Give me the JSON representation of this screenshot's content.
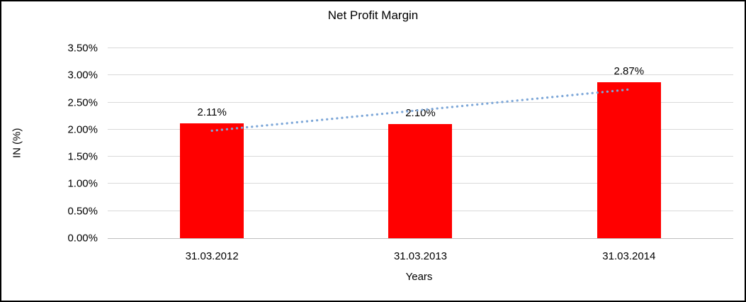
{
  "chart_data": {
    "type": "bar",
    "title": "Net Profit Margin",
    "xlabel": "Years",
    "ylabel": "IN (%)",
    "categories": [
      "31.03.2012",
      "31.03.2013",
      "31.03.2014"
    ],
    "values": [
      2.11,
      2.1,
      2.87
    ],
    "value_labels": [
      "2.11%",
      "2.10%",
      "2.87%"
    ],
    "ylim": [
      0,
      3.5
    ],
    "yticks": [
      0,
      0.5,
      1,
      1.5,
      2,
      2.5,
      3,
      3.5
    ],
    "ytick_labels": [
      "0.00%",
      "0.50%",
      "1.00%",
      "1.50%",
      "2.00%",
      "2.50%",
      "3.00%",
      "3.50%"
    ],
    "grid": true,
    "legend": false,
    "bar_color": "#FF0000",
    "gridline_color": "#D9D9D9",
    "axis_line_color": "#BFBFBF",
    "trendline": {
      "type": "linear",
      "style": "dotted",
      "color": "#7DA7D8",
      "start_value": 1.98,
      "end_value": 2.74
    }
  }
}
